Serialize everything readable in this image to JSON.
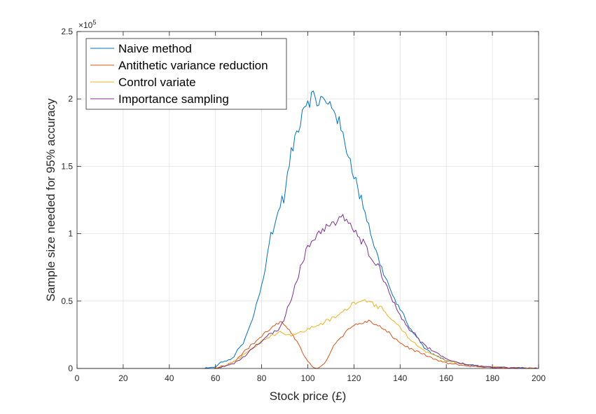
{
  "chart_data": {
    "type": "line",
    "title": "",
    "xlabel": "Stock price (£)",
    "ylabel": "Sample size needed for 95% accuracy",
    "xlim": [
      0,
      200
    ],
    "ylim": [
      0,
      250000
    ],
    "x_ticks": [
      0,
      20,
      40,
      60,
      80,
      100,
      120,
      140,
      160,
      180,
      200
    ],
    "y_ticks": [
      0,
      50000,
      100000,
      150000,
      200000,
      250000
    ],
    "y_tick_labels": [
      "0",
      "0.5",
      "1",
      "1.5",
      "2",
      "2.5"
    ],
    "y_exponent_base": "×10",
    "y_exponent_power": "5",
    "grid": true,
    "legend_position": "top-left",
    "series": [
      {
        "name": "Naive method",
        "color": "#0072BD",
        "x": [
          0,
          55,
          58,
          60,
          62,
          64,
          66,
          68,
          70,
          72,
          74,
          76,
          78,
          80,
          82,
          84,
          86,
          88,
          90,
          92,
          94,
          96,
          98,
          100,
          102,
          104,
          106,
          108,
          110,
          112,
          114,
          116,
          118,
          120,
          122,
          124,
          126,
          128,
          130,
          132,
          134,
          136,
          138,
          140,
          142,
          144,
          146,
          148,
          150,
          152,
          154,
          156,
          158,
          160,
          164,
          168,
          172,
          176,
          180,
          186,
          192,
          200
        ],
        "y": [
          0,
          0,
          300,
          1500,
          4000,
          5500,
          6000,
          9000,
          15000,
          18000,
          28000,
          36000,
          50000,
          62000,
          78000,
          100000,
          108000,
          122000,
          128000,
          152000,
          168000,
          180000,
          195000,
          200000,
          202000,
          198000,
          200000,
          195000,
          196000,
          192000,
          178000,
          168000,
          157000,
          145000,
          130000,
          122000,
          109000,
          96000,
          84000,
          75000,
          66000,
          58000,
          48000,
          45000,
          38000,
          30000,
          25000,
          22000,
          16000,
          13000,
          11000,
          9000,
          7500,
          6000,
          4500,
          3200,
          2200,
          1500,
          1000,
          500,
          200,
          0
        ]
      },
      {
        "name": "Antithetic variance reduction",
        "color": "#D95319",
        "x": [
          0,
          58,
          60,
          64,
          68,
          72,
          76,
          80,
          84,
          88,
          92,
          94,
          96,
          98,
          100,
          102,
          104,
          106,
          108,
          110,
          112,
          114,
          116,
          118,
          120,
          122,
          124,
          126,
          128,
          132,
          136,
          140,
          144,
          148,
          152,
          156,
          160,
          166,
          172,
          180,
          190,
          200
        ],
        "y": [
          0,
          0,
          500,
          2000,
          5000,
          12000,
          18000,
          24000,
          30000,
          34000,
          29000,
          24000,
          18000,
          11000,
          5000,
          1500,
          0,
          1500,
          6000,
          13000,
          19000,
          23000,
          26000,
          30000,
          32000,
          33000,
          34000,
          35000,
          34000,
          30000,
          25000,
          19000,
          15000,
          12000,
          9000,
          6000,
          4000,
          2500,
          1500,
          800,
          300,
          0
        ]
      },
      {
        "name": "Control variate",
        "color": "#EDB120",
        "x": [
          0,
          58,
          60,
          64,
          68,
          72,
          76,
          80,
          84,
          88,
          92,
          96,
          100,
          104,
          108,
          112,
          116,
          118,
          120,
          122,
          124,
          126,
          128,
          130,
          132,
          134,
          136,
          140,
          144,
          148,
          152,
          156,
          160,
          166,
          172,
          180,
          190,
          200
        ],
        "y": [
          0,
          0,
          500,
          2000,
          5000,
          10000,
          15000,
          20000,
          25000,
          27000,
          25000,
          26000,
          29000,
          32000,
          35000,
          38000,
          43000,
          46000,
          49000,
          51000,
          50000,
          51000,
          50000,
          45000,
          44000,
          40000,
          37000,
          30000,
          22000,
          16000,
          12000,
          9000,
          6000,
          3500,
          2000,
          1000,
          300,
          0
        ]
      },
      {
        "name": "Importance sampling",
        "color": "#7E2F8E",
        "x": [
          0,
          60,
          64,
          68,
          72,
          76,
          80,
          84,
          88,
          90,
          92,
          94,
          96,
          98,
          100,
          102,
          104,
          106,
          108,
          110,
          112,
          114,
          116,
          118,
          120,
          122,
          124,
          126,
          128,
          130,
          132,
          134,
          136,
          138,
          140,
          142,
          144,
          146,
          148,
          150,
          154,
          158,
          162,
          166,
          170,
          176,
          184,
          192,
          200
        ],
        "y": [
          0,
          0,
          1500,
          4000,
          8000,
          15000,
          20000,
          26000,
          30000,
          38000,
          48000,
          60000,
          70000,
          80000,
          90000,
          95000,
          100000,
          103000,
          105000,
          106000,
          108000,
          110000,
          112000,
          108000,
          102000,
          96000,
          93000,
          88000,
          82000,
          78000,
          70000,
          62000,
          55000,
          45000,
          40000,
          35000,
          29000,
          26000,
          22000,
          18000,
          13000,
          9000,
          6000,
          4000,
          2500,
          1500,
          700,
          200,
          0
        ]
      }
    ]
  }
}
